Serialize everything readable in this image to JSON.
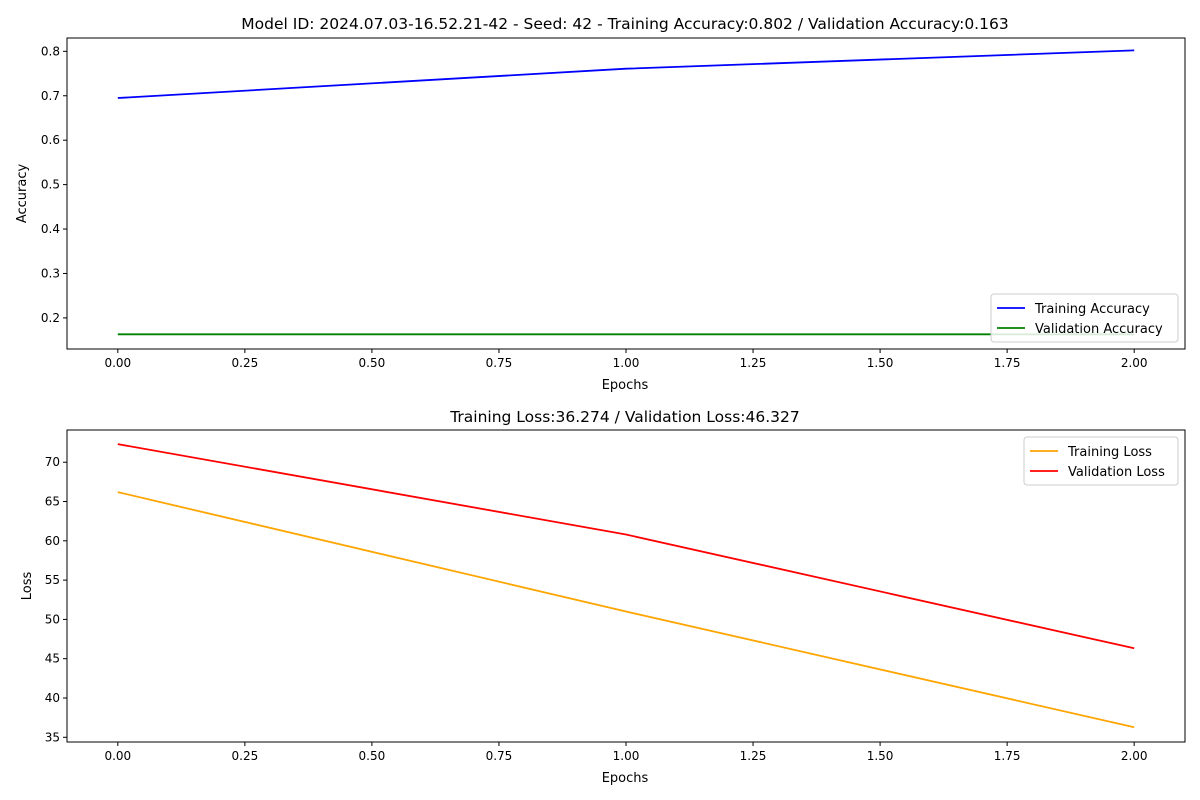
{
  "chart_data": [
    {
      "type": "line",
      "title": "Model ID: 2024.07.03-16.52.21-42 - Seed: 42 - Training Accuracy:0.802 / Validation Accuracy:0.163",
      "xlabel": "Epochs",
      "ylabel": "Accuracy",
      "xlim": [
        -0.1,
        2.1
      ],
      "ylim": [
        0.13,
        0.83
      ],
      "xticks": [
        0,
        0.25,
        0.5,
        0.75,
        1,
        1.25,
        1.5,
        1.75,
        2
      ],
      "xtick_labels": [
        "0.00",
        "0.25",
        "0.50",
        "0.75",
        "1.00",
        "1.25",
        "1.50",
        "1.75",
        "2.00"
      ],
      "yticks": [
        0.2,
        0.3,
        0.4,
        0.5,
        0.6,
        0.7,
        0.8
      ],
      "ytick_labels": [
        "0.2",
        "0.3",
        "0.4",
        "0.5",
        "0.6",
        "0.7",
        "0.8"
      ],
      "grid": false,
      "legend_position": "lower right",
      "x": [
        0,
        1,
        2
      ],
      "series": [
        {
          "name": "Training Accuracy",
          "color": "#0000ff",
          "values": [
            0.695,
            0.761,
            0.802
          ]
        },
        {
          "name": "Validation Accuracy",
          "color": "#008000",
          "values": [
            0.163,
            0.163,
            0.163
          ]
        }
      ]
    },
    {
      "type": "line",
      "title": "Training Loss:36.274 / Validation Loss:46.327",
      "xlabel": "Epochs",
      "ylabel": "Loss",
      "xlim": [
        -0.1,
        2.1
      ],
      "ylim": [
        34.4,
        74.1
      ],
      "xticks": [
        0,
        0.25,
        0.5,
        0.75,
        1,
        1.25,
        1.5,
        1.75,
        2
      ],
      "xtick_labels": [
        "0.00",
        "0.25",
        "0.50",
        "0.75",
        "1.00",
        "1.25",
        "1.50",
        "1.75",
        "2.00"
      ],
      "yticks": [
        35,
        40,
        45,
        50,
        55,
        60,
        65,
        70
      ],
      "ytick_labels": [
        "35",
        "40",
        "45",
        "50",
        "55",
        "60",
        "65",
        "70"
      ],
      "grid": false,
      "legend_position": "upper right",
      "x": [
        0,
        1,
        2
      ],
      "series": [
        {
          "name": "Training Loss",
          "color": "#ffa500",
          "values": [
            66.2,
            51.0,
            36.274
          ]
        },
        {
          "name": "Validation Loss",
          "color": "#ff0000",
          "values": [
            72.3,
            60.8,
            46.327
          ]
        }
      ]
    }
  ]
}
